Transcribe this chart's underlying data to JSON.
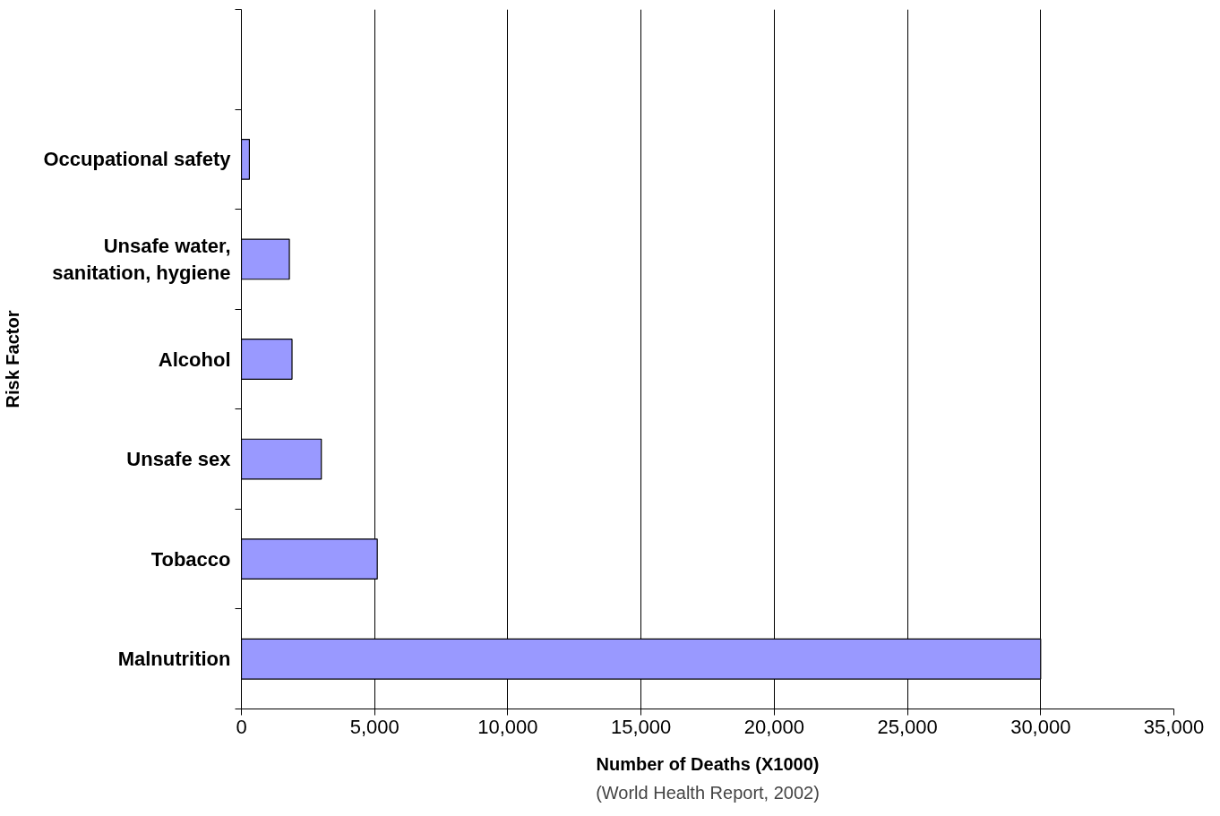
{
  "chart_data": {
    "type": "bar",
    "orientation": "horizontal",
    "xlabel": "Number of Deaths (X1000)",
    "ylabel": "Risk Factor",
    "annotations": [
      "(World Health Report, 2002)"
    ],
    "categories": [
      null,
      "Occupational safety",
      "Unsafe water,\nsanitation, hygiene",
      "Alcohol",
      "Unsafe sex",
      "Tobacco",
      "Malnutrition"
    ],
    "values": [
      null,
      300,
      1800,
      1900,
      3000,
      5100,
      30000
    ],
    "color": "#9999ff",
    "xlim": [
      0,
      35000
    ],
    "xticks": [
      {
        "value": 0,
        "label": "0"
      },
      {
        "value": 5000,
        "label": "5,000"
      },
      {
        "value": 10000,
        "label": "10,000"
      },
      {
        "value": 15000,
        "label": "15,000"
      },
      {
        "value": 20000,
        "label": "20,000"
      },
      {
        "value": 25000,
        "label": "25,000"
      },
      {
        "value": 30000,
        "label": "30,000"
      },
      {
        "value": 35000,
        "label": "35,000"
      }
    ],
    "grid": "x"
  }
}
